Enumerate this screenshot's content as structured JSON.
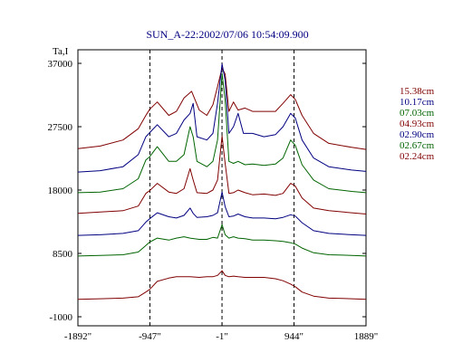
{
  "chart_data": {
    "type": "line",
    "title": "SUN_A-22:2002/07/06 10:54:09.900",
    "ylabel": "Ta,I",
    "xlabel": "",
    "xlim": [
      -1892,
      1889
    ],
    "ylim": [
      -1000,
      37000
    ],
    "x_ticks": [
      -1892,
      -947,
      -1,
      944,
      1889
    ],
    "x_tick_labels": [
      "-1892\"",
      "-947\"",
      "-1\"",
      "944\"",
      "1889\""
    ],
    "y_ticks": [
      37000,
      27500,
      18000,
      8500,
      -1000
    ],
    "y_tick_labels": [
      "37000",
      "27500",
      "18000",
      "8500",
      "-1000"
    ],
    "vlines": [
      -947,
      -1,
      944
    ],
    "legend_position": "right",
    "series": [
      {
        "name": "15.38cm",
        "color": "#800000",
        "points": [
          [
            -1892,
            24200
          ],
          [
            -1600,
            24600
          ],
          [
            -1300,
            25500
          ],
          [
            -1100,
            27200
          ],
          [
            -1000,
            29200
          ],
          [
            -950,
            30100
          ],
          [
            -850,
            31200
          ],
          [
            -700,
            29200
          ],
          [
            -600,
            29800
          ],
          [
            -500,
            31800
          ],
          [
            -400,
            32800
          ],
          [
            -300,
            30000
          ],
          [
            -200,
            29200
          ],
          [
            -120,
            30800
          ],
          [
            -60,
            33500
          ],
          [
            0,
            36300
          ],
          [
            40,
            35400
          ],
          [
            90,
            29800
          ],
          [
            150,
            31200
          ],
          [
            210,
            30000
          ],
          [
            300,
            30300
          ],
          [
            400,
            29800
          ],
          [
            550,
            29800
          ],
          [
            700,
            29800
          ],
          [
            800,
            31000
          ],
          [
            900,
            32300
          ],
          [
            960,
            31600
          ],
          [
            1050,
            29200
          ],
          [
            1200,
            26500
          ],
          [
            1400,
            25000
          ],
          [
            1700,
            24400
          ],
          [
            1889,
            24100
          ]
        ]
      },
      {
        "name": "10.17cm",
        "color": "#000080",
        "points": [
          [
            -1892,
            20700
          ],
          [
            -1600,
            20900
          ],
          [
            -1300,
            21500
          ],
          [
            -1100,
            23300
          ],
          [
            -1000,
            26000
          ],
          [
            -950,
            26600
          ],
          [
            -850,
            27800
          ],
          [
            -700,
            26000
          ],
          [
            -600,
            26500
          ],
          [
            -500,
            28500
          ],
          [
            -420,
            29500
          ],
          [
            -380,
            31000
          ],
          [
            -330,
            26000
          ],
          [
            -200,
            25500
          ],
          [
            -120,
            26500
          ],
          [
            -60,
            31000
          ],
          [
            0,
            36900
          ],
          [
            40,
            34500
          ],
          [
            90,
            26500
          ],
          [
            150,
            27500
          ],
          [
            210,
            29500
          ],
          [
            280,
            26500
          ],
          [
            400,
            26500
          ],
          [
            550,
            26000
          ],
          [
            700,
            26300
          ],
          [
            800,
            27500
          ],
          [
            900,
            29500
          ],
          [
            960,
            28800
          ],
          [
            1050,
            25500
          ],
          [
            1200,
            22800
          ],
          [
            1400,
            21500
          ],
          [
            1700,
            21000
          ],
          [
            1889,
            20800
          ]
        ]
      },
      {
        "name": "07.03cm",
        "color": "#006400",
        "points": [
          [
            -1892,
            17600
          ],
          [
            -1600,
            17700
          ],
          [
            -1300,
            18200
          ],
          [
            -1100,
            19700
          ],
          [
            -1000,
            22500
          ],
          [
            -950,
            23000
          ],
          [
            -850,
            24500
          ],
          [
            -700,
            22300
          ],
          [
            -600,
            22300
          ],
          [
            -500,
            23300
          ],
          [
            -420,
            27500
          ],
          [
            -380,
            26000
          ],
          [
            -330,
            22300
          ],
          [
            -200,
            21500
          ],
          [
            -120,
            22300
          ],
          [
            -60,
            25500
          ],
          [
            0,
            35500
          ],
          [
            40,
            31500
          ],
          [
            90,
            22300
          ],
          [
            150,
            22000
          ],
          [
            210,
            22300
          ],
          [
            300,
            21800
          ],
          [
            400,
            21900
          ],
          [
            550,
            21700
          ],
          [
            700,
            21900
          ],
          [
            800,
            22800
          ],
          [
            900,
            25500
          ],
          [
            960,
            24700
          ],
          [
            1050,
            21800
          ],
          [
            1200,
            19500
          ],
          [
            1400,
            18200
          ],
          [
            1700,
            17800
          ],
          [
            1889,
            17600
          ]
        ]
      },
      {
        "name": "04.93cm",
        "color": "#800000",
        "points": [
          [
            -1892,
            14500
          ],
          [
            -1600,
            14700
          ],
          [
            -1300,
            14900
          ],
          [
            -1100,
            15600
          ],
          [
            -1000,
            17500
          ],
          [
            -950,
            17900
          ],
          [
            -850,
            19000
          ],
          [
            -700,
            17700
          ],
          [
            -600,
            17500
          ],
          [
            -500,
            18200
          ],
          [
            -420,
            21200
          ],
          [
            -380,
            19500
          ],
          [
            -330,
            17600
          ],
          [
            -200,
            17500
          ],
          [
            -120,
            18000
          ],
          [
            -60,
            19500
          ],
          [
            0,
            26100
          ],
          [
            40,
            22000
          ],
          [
            90,
            17500
          ],
          [
            150,
            17600
          ],
          [
            210,
            18000
          ],
          [
            300,
            17600
          ],
          [
            400,
            17300
          ],
          [
            550,
            17400
          ],
          [
            700,
            17200
          ],
          [
            800,
            17500
          ],
          [
            900,
            19000
          ],
          [
            960,
            18600
          ],
          [
            1050,
            16800
          ],
          [
            1200,
            15300
          ],
          [
            1400,
            14900
          ],
          [
            1700,
            14600
          ],
          [
            1889,
            14400
          ]
        ]
      },
      {
        "name": "02.90cm",
        "color": "#000080",
        "points": [
          [
            -1892,
            11200
          ],
          [
            -1600,
            11300
          ],
          [
            -1300,
            11500
          ],
          [
            -1100,
            11900
          ],
          [
            -1000,
            13200
          ],
          [
            -950,
            13700
          ],
          [
            -850,
            14600
          ],
          [
            -700,
            14000
          ],
          [
            -600,
            13800
          ],
          [
            -500,
            14200
          ],
          [
            -420,
            15300
          ],
          [
            -380,
            14500
          ],
          [
            -330,
            13900
          ],
          [
            -200,
            14000
          ],
          [
            -120,
            14200
          ],
          [
            -60,
            14600
          ],
          [
            0,
            17700
          ],
          [
            40,
            15500
          ],
          [
            90,
            14000
          ],
          [
            150,
            14100
          ],
          [
            210,
            14400
          ],
          [
            300,
            14000
          ],
          [
            400,
            13800
          ],
          [
            550,
            13800
          ],
          [
            700,
            13700
          ],
          [
            800,
            13900
          ],
          [
            900,
            14300
          ],
          [
            960,
            14100
          ],
          [
            1050,
            13100
          ],
          [
            1200,
            11900
          ],
          [
            1400,
            11500
          ],
          [
            1700,
            11300
          ],
          [
            1889,
            11200
          ]
        ]
      },
      {
        "name": "02.67cm",
        "color": "#006400",
        "points": [
          [
            -1892,
            8100
          ],
          [
            -1600,
            8200
          ],
          [
            -1300,
            8300
          ],
          [
            -1100,
            8700
          ],
          [
            -1000,
            9700
          ],
          [
            -950,
            10200
          ],
          [
            -850,
            10800
          ],
          [
            -700,
            10500
          ],
          [
            -600,
            10800
          ],
          [
            -500,
            11000
          ],
          [
            -420,
            10800
          ],
          [
            -300,
            10600
          ],
          [
            -200,
            10600
          ],
          [
            -120,
            10900
          ],
          [
            -60,
            10800
          ],
          [
            0,
            12800
          ],
          [
            40,
            11300
          ],
          [
            90,
            10800
          ],
          [
            150,
            11000
          ],
          [
            210,
            10800
          ],
          [
            300,
            10700
          ],
          [
            400,
            10500
          ],
          [
            550,
            10500
          ],
          [
            700,
            10400
          ],
          [
            800,
            10300
          ],
          [
            900,
            10100
          ],
          [
            960,
            9900
          ],
          [
            1050,
            9300
          ],
          [
            1200,
            8600
          ],
          [
            1400,
            8300
          ],
          [
            1700,
            8200
          ],
          [
            1889,
            8100
          ]
        ]
      },
      {
        "name": "02.24cm",
        "color": "#800000",
        "points": [
          [
            -1892,
            1600
          ],
          [
            -1600,
            1700
          ],
          [
            -1300,
            1800
          ],
          [
            -1100,
            2000
          ],
          [
            -1000,
            2700
          ],
          [
            -950,
            3100
          ],
          [
            -850,
            4300
          ],
          [
            -700,
            4800
          ],
          [
            -600,
            5000
          ],
          [
            -500,
            5000
          ],
          [
            -420,
            5000
          ],
          [
            -300,
            4900
          ],
          [
            -200,
            5000
          ],
          [
            -120,
            5000
          ],
          [
            -60,
            5200
          ],
          [
            0,
            5900
          ],
          [
            40,
            5200
          ],
          [
            90,
            5000
          ],
          [
            150,
            5100
          ],
          [
            210,
            5000
          ],
          [
            300,
            4900
          ],
          [
            400,
            4900
          ],
          [
            550,
            4900
          ],
          [
            700,
            4700
          ],
          [
            800,
            4400
          ],
          [
            900,
            3900
          ],
          [
            960,
            3500
          ],
          [
            1050,
            2700
          ],
          [
            1200,
            2100
          ],
          [
            1400,
            1800
          ],
          [
            1700,
            1700
          ],
          [
            1889,
            1600
          ]
        ]
      }
    ]
  }
}
